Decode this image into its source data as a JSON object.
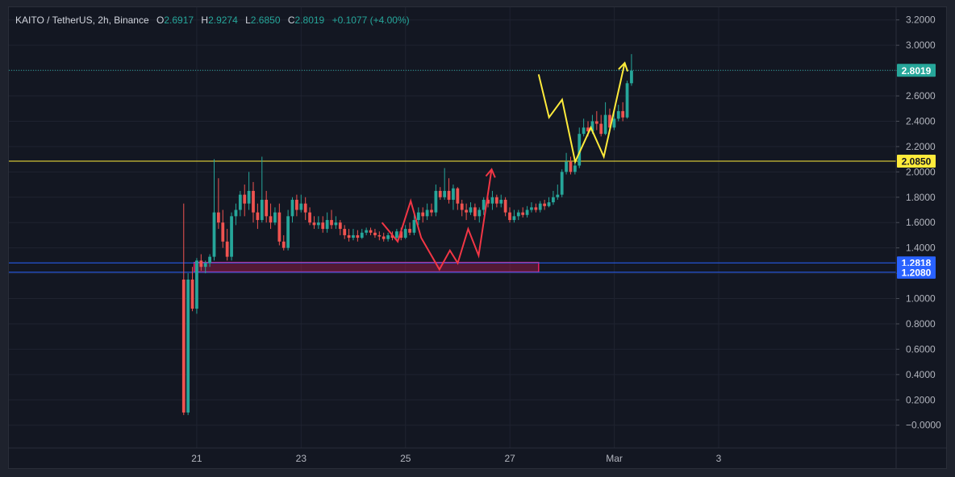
{
  "legend": {
    "symbol": "KAITO / TetherUS, 2h, Binance",
    "open_label": "O",
    "open": "2.6917",
    "high_label": "H",
    "high": "2.9274",
    "low_label": "L",
    "low": "2.6850",
    "close_label": "C",
    "close": "2.8019",
    "change": "+0.1077 (+4.00%)"
  },
  "colors": {
    "background": "#131722",
    "grid": "#1f2330",
    "up": "#26a69a",
    "down": "#ef5350",
    "axis_text": "#b2b5be",
    "support_line": "#ffeb3b",
    "zone_line": "#2962ff",
    "zone_box": "#e91e63",
    "red_path": "#f23645",
    "yellow_path": "#ffeb3b"
  },
  "chart_data": {
    "type": "candlestick",
    "y_ticks": [
      "3.2000",
      "3.0000",
      "2.8000",
      "2.6000",
      "2.4000",
      "2.2000",
      "2.0000",
      "1.8000",
      "1.6000",
      "1.4000",
      "1.2000",
      "1.0000",
      "0.8000",
      "0.6000",
      "0.4000",
      "0.2000",
      "−0.0000"
    ],
    "y_tick_values": [
      3.2,
      3.0,
      2.8,
      2.6,
      2.4,
      2.2,
      2.0,
      1.8,
      1.6,
      1.4,
      1.2,
      1.0,
      0.8,
      0.6,
      0.4,
      0.2,
      0.0
    ],
    "ylim": [
      -0.18,
      3.3
    ],
    "x_labels": [
      {
        "label": "21",
        "day": 21
      },
      {
        "label": "23",
        "day": 23
      },
      {
        "label": "25",
        "day": 25
      },
      {
        "label": "27",
        "day": 27
      },
      {
        "label": "Mar",
        "day": 29
      },
      {
        "label": "3",
        "day": 31
      }
    ],
    "xlim_days": [
      17.4,
      34.4
    ],
    "first_candle_day": 20.75,
    "candle_step_days": 0.0833,
    "candles": [
      [
        1.15,
        0.1,
        1.75,
        0.08
      ],
      [
        0.1,
        1.15,
        1.2,
        0.08
      ],
      [
        1.15,
        0.92,
        1.25,
        0.9
      ],
      [
        0.92,
        1.3,
        1.32,
        0.88
      ],
      [
        1.3,
        1.25,
        1.35,
        1.22
      ],
      [
        1.25,
        1.28,
        1.3,
        1.2
      ],
      [
        1.28,
        1.33,
        1.35,
        1.25
      ],
      [
        1.33,
        1.68,
        2.1,
        1.3
      ],
      [
        1.68,
        1.6,
        1.95,
        1.55
      ],
      [
        1.6,
        1.45,
        1.7,
        1.4
      ],
      [
        1.45,
        1.33,
        1.55,
        1.3
      ],
      [
        1.33,
        1.65,
        1.68,
        1.3
      ],
      [
        1.65,
        1.7,
        1.75,
        1.58
      ],
      [
        1.7,
        1.82,
        1.85,
        1.65
      ],
      [
        1.82,
        1.75,
        1.9,
        1.65
      ],
      [
        1.75,
        1.85,
        2.0,
        1.7
      ],
      [
        1.85,
        1.68,
        1.92,
        1.6
      ],
      [
        1.68,
        1.62,
        1.75,
        1.55
      ],
      [
        1.62,
        1.78,
        2.12,
        1.6
      ],
      [
        1.78,
        1.65,
        1.85,
        1.6
      ],
      [
        1.65,
        1.6,
        1.75,
        1.55
      ],
      [
        1.6,
        1.68,
        1.72,
        1.58
      ],
      [
        1.68,
        1.45,
        1.75,
        1.42
      ],
      [
        1.45,
        1.4,
        1.5,
        1.38
      ],
      [
        1.4,
        1.65,
        1.7,
        1.38
      ],
      [
        1.65,
        1.78,
        1.8,
        1.6
      ],
      [
        1.78,
        1.7,
        1.82,
        1.65
      ],
      [
        1.7,
        1.75,
        1.82,
        1.68
      ],
      [
        1.75,
        1.68,
        1.8,
        1.62
      ],
      [
        1.68,
        1.6,
        1.72,
        1.58
      ],
      [
        1.6,
        1.58,
        1.65,
        1.55
      ],
      [
        1.58,
        1.6,
        1.65,
        1.55
      ],
      [
        1.6,
        1.55,
        1.65,
        1.52
      ],
      [
        1.55,
        1.62,
        1.68,
        1.52
      ],
      [
        1.62,
        1.58,
        1.7,
        1.55
      ],
      [
        1.58,
        1.6,
        1.65,
        1.55
      ],
      [
        1.6,
        1.55,
        1.62,
        1.5
      ],
      [
        1.55,
        1.5,
        1.58,
        1.47
      ],
      [
        1.5,
        1.48,
        1.55,
        1.45
      ],
      [
        1.48,
        1.5,
        1.55,
        1.46
      ],
      [
        1.5,
        1.48,
        1.54,
        1.45
      ],
      [
        1.48,
        1.52,
        1.55,
        1.47
      ],
      [
        1.52,
        1.54,
        1.56,
        1.5
      ],
      [
        1.54,
        1.52,
        1.56,
        1.5
      ],
      [
        1.52,
        1.5,
        1.55,
        1.48
      ],
      [
        1.5,
        1.49,
        1.53,
        1.46
      ],
      [
        1.49,
        1.47,
        1.52,
        1.45
      ],
      [
        1.47,
        1.5,
        1.52,
        1.45
      ],
      [
        1.5,
        1.48,
        1.53,
        1.46
      ],
      [
        1.48,
        1.53,
        1.55,
        1.46
      ],
      [
        1.53,
        1.48,
        1.56,
        1.46
      ],
      [
        1.48,
        1.55,
        1.58,
        1.47
      ],
      [
        1.55,
        1.52,
        1.6,
        1.5
      ],
      [
        1.52,
        1.62,
        1.68,
        1.5
      ],
      [
        1.62,
        1.68,
        1.72,
        1.58
      ],
      [
        1.68,
        1.65,
        1.72,
        1.6
      ],
      [
        1.65,
        1.7,
        1.75,
        1.62
      ],
      [
        1.7,
        1.68,
        1.75,
        1.65
      ],
      [
        1.68,
        1.85,
        1.9,
        1.65
      ],
      [
        1.85,
        1.8,
        1.88,
        1.78
      ],
      [
        1.8,
        1.85,
        2.03,
        1.78
      ],
      [
        1.85,
        1.78,
        1.95,
        1.75
      ],
      [
        1.78,
        1.87,
        1.9,
        1.7
      ],
      [
        1.87,
        1.75,
        1.88,
        1.7
      ],
      [
        1.75,
        1.7,
        1.78,
        1.65
      ],
      [
        1.7,
        1.68,
        1.75,
        1.62
      ],
      [
        1.68,
        1.72,
        1.76,
        1.66
      ],
      [
        1.72,
        1.65,
        1.75,
        1.62
      ],
      [
        1.65,
        1.7,
        1.72,
        1.6
      ],
      [
        1.7,
        1.78,
        1.8,
        1.66
      ],
      [
        1.78,
        1.75,
        1.8,
        1.72
      ],
      [
        1.75,
        1.8,
        1.85,
        1.7
      ],
      [
        1.8,
        1.75,
        1.82,
        1.72
      ],
      [
        1.75,
        1.78,
        1.82,
        1.72
      ],
      [
        1.78,
        1.68,
        1.8,
        1.65
      ],
      [
        1.68,
        1.62,
        1.72,
        1.6
      ],
      [
        1.62,
        1.65,
        1.7,
        1.6
      ],
      [
        1.65,
        1.68,
        1.7,
        1.62
      ],
      [
        1.68,
        1.66,
        1.72,
        1.64
      ],
      [
        1.66,
        1.7,
        1.73,
        1.64
      ],
      [
        1.7,
        1.72,
        1.76,
        1.68
      ],
      [
        1.72,
        1.7,
        1.75,
        1.68
      ],
      [
        1.7,
        1.75,
        1.77,
        1.68
      ],
      [
        1.75,
        1.73,
        1.78,
        1.7
      ],
      [
        1.73,
        1.76,
        1.8,
        1.72
      ],
      [
        1.76,
        1.8,
        1.85,
        1.74
      ],
      [
        1.8,
        1.82,
        1.9,
        1.78
      ],
      [
        1.82,
        2.0,
        2.02,
        1.8
      ],
      [
        2.0,
        2.08,
        2.15,
        1.98
      ],
      [
        2.08,
        2.0,
        2.12,
        1.98
      ],
      [
        2.0,
        2.05,
        2.1,
        1.98
      ],
      [
        2.05,
        2.3,
        2.35,
        2.03
      ],
      [
        2.3,
        2.35,
        2.42,
        2.28
      ],
      [
        2.35,
        2.32,
        2.4,
        2.28
      ],
      [
        2.32,
        2.4,
        2.45,
        2.3
      ],
      [
        2.4,
        2.38,
        2.48,
        2.33
      ],
      [
        2.38,
        2.3,
        2.45,
        2.28
      ],
      [
        2.3,
        2.45,
        2.55,
        2.29
      ],
      [
        2.45,
        2.35,
        2.5,
        2.32
      ],
      [
        2.35,
        2.42,
        2.48,
        2.33
      ],
      [
        2.42,
        2.48,
        2.53,
        2.4
      ],
      [
        2.48,
        2.43,
        2.55,
        2.4
      ],
      [
        2.43,
        2.7,
        2.72,
        2.42
      ],
      [
        2.7,
        2.8,
        2.93,
        2.68
      ]
    ],
    "horizontal_lines": [
      {
        "label": "2.8019",
        "value": 2.8019,
        "kind": "last_price"
      },
      {
        "label": "2.0850",
        "value": 2.085,
        "kind": "support"
      },
      {
        "label": "1.2818",
        "value": 1.2818,
        "kind": "zone_top"
      },
      {
        "label": "1.2080",
        "value": 1.208,
        "kind": "zone_bottom"
      }
    ],
    "zone_box": {
      "day_start": 20.95,
      "day_end": 27.55,
      "top": 1.285,
      "bottom": 1.21
    },
    "red_path": [
      [
        24.55,
        1.6
      ],
      [
        24.85,
        1.45
      ],
      [
        25.1,
        1.77
      ],
      [
        25.3,
        1.48
      ],
      [
        25.65,
        1.23
      ],
      [
        25.85,
        1.38
      ],
      [
        26.0,
        1.28
      ],
      [
        26.2,
        1.55
      ],
      [
        26.4,
        1.34
      ],
      [
        26.65,
        2.02
      ]
    ],
    "yellow_path": [
      [
        27.55,
        2.77
      ],
      [
        27.75,
        2.43
      ],
      [
        28.0,
        2.57
      ],
      [
        28.25,
        2.08
      ],
      [
        28.55,
        2.35
      ],
      [
        28.8,
        2.12
      ],
      [
        29.2,
        2.86
      ]
    ]
  }
}
